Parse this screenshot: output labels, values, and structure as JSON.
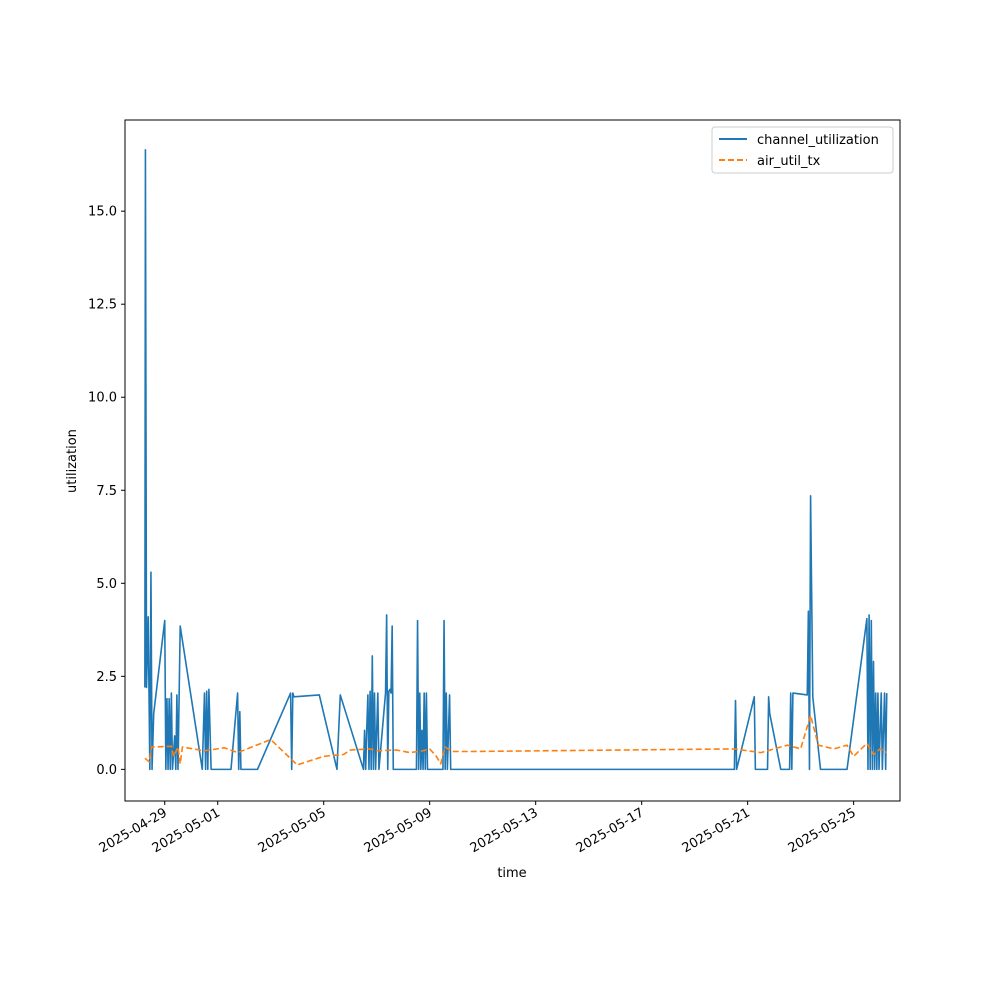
{
  "chart_data": {
    "type": "line",
    "xlabel": "time",
    "ylabel": "utilization",
    "xlim": [
      "2025-04-27T12:00",
      "2025-05-26T18:00"
    ],
    "ylim": [
      -0.85,
      17.45
    ],
    "yticks": [
      0.0,
      2.5,
      5.0,
      7.5,
      10.0,
      12.5,
      15.0
    ],
    "ytick_labels": [
      "0.0",
      "2.5",
      "5.0",
      "7.5",
      "10.0",
      "12.5",
      "15.0"
    ],
    "xticks": [
      "2025-04-29",
      "2025-05-01",
      "2025-05-05",
      "2025-05-09",
      "2025-05-13",
      "2025-05-17",
      "2025-05-21",
      "2025-05-25"
    ],
    "xtick_labels": [
      "2025-04-29",
      "2025-05-01",
      "2025-05-05",
      "2025-05-09",
      "2025-05-13",
      "2025-05-17",
      "2025-05-21",
      "2025-05-25"
    ],
    "grid": false,
    "legend_position": "top-right",
    "series": [
      {
        "name": "channel_utilization",
        "color": "#1f77b4",
        "style": "solid",
        "points": [
          [
            "2025-04-28T06:00",
            2.2
          ],
          [
            "2025-04-28T06:30",
            16.65
          ],
          [
            "2025-04-28T07:30",
            2.2
          ],
          [
            "2025-04-28T09:00",
            4.1
          ],
          [
            "2025-04-28T10:30",
            0.0
          ],
          [
            "2025-04-28T11:30",
            5.3
          ],
          [
            "2025-04-28T12:30",
            0.0
          ],
          [
            "2025-04-28T14:00",
            1.5
          ],
          [
            "2025-04-29T00:00",
            4.0
          ],
          [
            "2025-04-29T01:00",
            0.0
          ],
          [
            "2025-04-29T02:00",
            1.9
          ],
          [
            "2025-04-29T03:00",
            0.0
          ],
          [
            "2025-04-29T04:00",
            1.9
          ],
          [
            "2025-04-29T05:00",
            0.0
          ],
          [
            "2025-04-29T06:00",
            2.05
          ],
          [
            "2025-04-29T07:00",
            0.0
          ],
          [
            "2025-04-29T09:00",
            0.9
          ],
          [
            "2025-04-29T10:00",
            0.0
          ],
          [
            "2025-04-29T11:00",
            2.0
          ],
          [
            "2025-04-29T12:00",
            0.0
          ],
          [
            "2025-04-29T14:00",
            3.85
          ],
          [
            "2025-04-30T10:00",
            0.0
          ],
          [
            "2025-04-30T12:00",
            2.05
          ],
          [
            "2025-04-30T13:00",
            0.0
          ],
          [
            "2025-04-30T14:00",
            2.1
          ],
          [
            "2025-04-30T15:00",
            0.0
          ],
          [
            "2025-04-30T16:00",
            2.15
          ],
          [
            "2025-04-30T18:00",
            0.0
          ],
          [
            "2025-05-01T12:00",
            0.0
          ],
          [
            "2025-05-01T18:00",
            2.05
          ],
          [
            "2025-05-01T19:00",
            0.0
          ],
          [
            "2025-05-01T20:00",
            1.55
          ],
          [
            "2025-05-01T21:00",
            0.0
          ],
          [
            "2025-05-02T12:00",
            0.0
          ],
          [
            "2025-05-03T18:00",
            2.05
          ],
          [
            "2025-05-03T19:00",
            0.0
          ],
          [
            "2025-05-03T20:00",
            2.05
          ],
          [
            "2025-05-03T21:00",
            1.95
          ],
          [
            "2025-05-04T20:00",
            2.0
          ],
          [
            "2025-05-05T12:00",
            0.0
          ],
          [
            "2025-05-05T15:00",
            2.0
          ],
          [
            "2025-05-06T12:00",
            0.0
          ],
          [
            "2025-05-06T13:00",
            1.05
          ],
          [
            "2025-05-06T14:00",
            0.0
          ],
          [
            "2025-05-06T15:00",
            1.1
          ],
          [
            "2025-05-06T16:00",
            2.0
          ],
          [
            "2025-05-06T17:00",
            0.0
          ],
          [
            "2025-05-06T18:00",
            2.1
          ],
          [
            "2025-05-06T19:00",
            0.0
          ],
          [
            "2025-05-06T20:00",
            3.05
          ],
          [
            "2025-05-06T21:00",
            0.0
          ],
          [
            "2025-05-06T22:00",
            2.05
          ],
          [
            "2025-05-06T23:00",
            0.0
          ],
          [
            "2025-05-07T01:00",
            2.05
          ],
          [
            "2025-05-07T02:00",
            0.0
          ],
          [
            "2025-05-07T08:00",
            2.05
          ],
          [
            "2025-05-07T09:00",
            4.15
          ],
          [
            "2025-05-07T10:00",
            0.0
          ],
          [
            "2025-05-07T11:00",
            2.1
          ],
          [
            "2025-05-07T12:00",
            2.15
          ],
          [
            "2025-05-07T13:00",
            2.05
          ],
          [
            "2025-05-07T14:00",
            3.85
          ],
          [
            "2025-05-07T15:00",
            0.0
          ],
          [
            "2025-05-08T12:00",
            0.0
          ],
          [
            "2025-05-08T13:00",
            4.0
          ],
          [
            "2025-05-08T14:00",
            0.0
          ],
          [
            "2025-05-08T15:00",
            2.05
          ],
          [
            "2025-05-08T16:00",
            0.0
          ],
          [
            "2025-05-08T17:00",
            1.05
          ],
          [
            "2025-05-08T18:00",
            0.0
          ],
          [
            "2025-05-08T19:00",
            2.05
          ],
          [
            "2025-05-08T20:00",
            0.0
          ],
          [
            "2025-05-08T21:00",
            2.05
          ],
          [
            "2025-05-08T22:00",
            0.0
          ],
          [
            "2025-05-09T12:00",
            0.0
          ],
          [
            "2025-05-09T13:00",
            4.0
          ],
          [
            "2025-05-09T14:00",
            0.0
          ],
          [
            "2025-05-09T15:00",
            2.05
          ],
          [
            "2025-05-09T16:00",
            0.0
          ],
          [
            "2025-05-09T18:00",
            2.0
          ],
          [
            "2025-05-09T19:00",
            0.0
          ],
          [
            "2025-05-20T12:00",
            0.0
          ],
          [
            "2025-05-20T13:00",
            1.85
          ],
          [
            "2025-05-20T14:00",
            0.0
          ],
          [
            "2025-05-21T06:00",
            1.95
          ],
          [
            "2025-05-21T07:00",
            0.0
          ],
          [
            "2025-05-21T18:00",
            0.0
          ],
          [
            "2025-05-21T19:00",
            1.95
          ],
          [
            "2025-05-21T20:00",
            1.5
          ],
          [
            "2025-05-22T06:00",
            0.0
          ],
          [
            "2025-05-22T14:00",
            0.0
          ],
          [
            "2025-05-22T15:00",
            2.05
          ],
          [
            "2025-05-22T16:00",
            0.0
          ],
          [
            "2025-05-22T17:00",
            2.05
          ],
          [
            "2025-05-23T06:00",
            2.0
          ],
          [
            "2025-05-23T07:00",
            4.25
          ],
          [
            "2025-05-23T08:00",
            0.0
          ],
          [
            "2025-05-23T09:00",
            7.35
          ],
          [
            "2025-05-23T11:00",
            1.95
          ],
          [
            "2025-05-23T18:00",
            0.0
          ],
          [
            "2025-05-24T18:00",
            0.0
          ],
          [
            "2025-05-25T12:00",
            4.05
          ],
          [
            "2025-05-25T13:00",
            0.0
          ],
          [
            "2025-05-25T14:00",
            4.15
          ],
          [
            "2025-05-25T15:00",
            0.0
          ],
          [
            "2025-05-25T16:00",
            4.0
          ],
          [
            "2025-05-25T17:00",
            0.0
          ],
          [
            "2025-05-25T18:00",
            2.9
          ],
          [
            "2025-05-25T19:00",
            0.0
          ],
          [
            "2025-05-25T20:00",
            2.05
          ],
          [
            "2025-05-25T21:00",
            0.0
          ],
          [
            "2025-05-25T22:00",
            2.05
          ],
          [
            "2025-05-25T23:00",
            0.0
          ],
          [
            "2025-05-26T01:00",
            2.05
          ],
          [
            "2025-05-26T02:00",
            0.0
          ],
          [
            "2025-05-26T04:00",
            2.05
          ],
          [
            "2025-05-26T05:00",
            0.0
          ],
          [
            "2025-05-26T06:00",
            2.05
          ]
        ]
      },
      {
        "name": "air_util_tx",
        "color": "#ff7f0e",
        "style": "dashed",
        "points": [
          [
            "2025-04-28T06:00",
            0.3
          ],
          [
            "2025-04-28T10:00",
            0.2
          ],
          [
            "2025-04-28T12:00",
            0.6
          ],
          [
            "2025-04-29T06:00",
            0.62
          ],
          [
            "2025-04-29T08:00",
            0.35
          ],
          [
            "2025-04-29T12:00",
            0.6
          ],
          [
            "2025-04-29T14:00",
            0.15
          ],
          [
            "2025-04-29T16:00",
            0.6
          ],
          [
            "2025-04-30T12:00",
            0.5
          ],
          [
            "2025-05-01T06:00",
            0.58
          ],
          [
            "2025-05-01T18:00",
            0.45
          ],
          [
            "2025-05-03T00:00",
            0.8
          ],
          [
            "2025-05-04T00:00",
            0.12
          ],
          [
            "2025-05-05T00:00",
            0.35
          ],
          [
            "2025-05-05T18:00",
            0.4
          ],
          [
            "2025-05-06T00:00",
            0.52
          ],
          [
            "2025-05-06T18:00",
            0.55
          ],
          [
            "2025-05-07T00:00",
            0.5
          ],
          [
            "2025-05-07T18:00",
            0.52
          ],
          [
            "2025-05-08T06:00",
            0.45
          ],
          [
            "2025-05-08T18:00",
            0.5
          ],
          [
            "2025-05-09T00:00",
            0.55
          ],
          [
            "2025-05-09T06:00",
            0.35
          ],
          [
            "2025-05-09T10:00",
            0.15
          ],
          [
            "2025-05-09T14:00",
            0.6
          ],
          [
            "2025-05-09T20:00",
            0.48
          ],
          [
            "2025-05-10T12:00",
            0.48
          ],
          [
            "2025-05-20T12:00",
            0.55
          ],
          [
            "2025-05-21T12:00",
            0.45
          ],
          [
            "2025-05-22T12:00",
            0.65
          ],
          [
            "2025-05-23T00:00",
            0.55
          ],
          [
            "2025-05-23T09:00",
            1.45
          ],
          [
            "2025-05-23T16:00",
            0.65
          ],
          [
            "2025-05-24T06:00",
            0.55
          ],
          [
            "2025-05-24T18:00",
            0.65
          ],
          [
            "2025-05-25T00:00",
            0.35
          ],
          [
            "2025-05-25T12:00",
            0.7
          ],
          [
            "2025-05-25T18:00",
            0.4
          ],
          [
            "2025-05-26T00:00",
            0.55
          ],
          [
            "2025-05-26T06:00",
            0.45
          ]
        ]
      }
    ]
  }
}
